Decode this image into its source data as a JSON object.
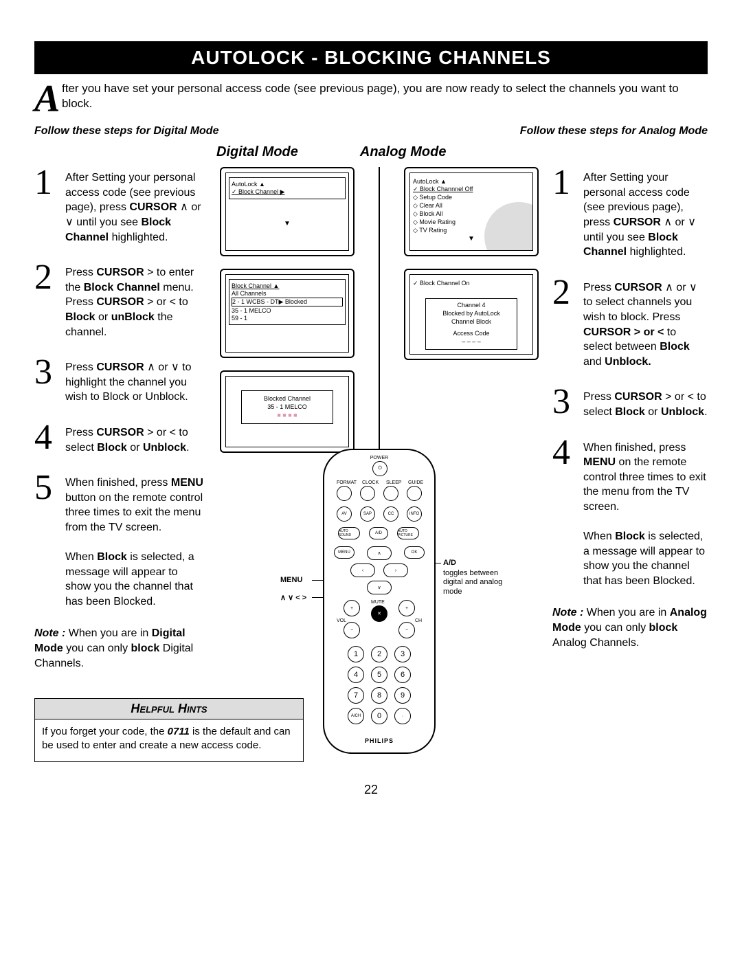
{
  "title": "AUTOLOCK - BLOCKING CHANNELS",
  "intro_cap": "A",
  "intro": "fter you have set your personal access code (see previous page), you are now ready to select the channels you want to block.",
  "sub_left": "Follow these steps for Digital Mode",
  "sub_right": "Follow these steps for Analog Mode",
  "mode_digital": "Digital Mode",
  "mode_analog": "Analog Mode",
  "digital_steps": [
    "After Setting your personal access code (see previous page), press <b>CURSOR</b> ∧ or ∨ until you see <b>Block Channel</b> highlighted.",
    "Press <b>CURSOR</b> &gt; to enter the <b>Block Channel</b> menu. Press <b>CURSOR</b> &gt; or &lt; to <b>Block</b> or <b>unBlock</b> the channel.",
    "Press <b>CURSOR</b> ∧ or ∨ to highlight the channel you wish to Block or Unblock.",
    "Press <b>CURSOR</b> &gt; or &lt; to select <b>Block</b> or <b>Unblock</b>.",
    "When finished, press <b>MENU</b> button on the remote control three times to exit the menu from the TV screen."
  ],
  "digital_block_msg": "When <b>Block</b> is selected, a message will appear to show you the channel that has been Blocked.",
  "digital_note": "<b><i>Note :</i></b> When you are in <b>Digital Mode</b> you can only <b>block</b> Digital Channels.",
  "analog_steps": [
    "After Setting your personal access code (see previous page), press <b>CURSOR</b> ∧ or ∨ until you see <b>Block Channel</b> highlighted.",
    "Press <b>CURSOR</b> ∧ or ∨ to select channels you wish to block. Press <b>CURSOR &gt; or &lt;</b> to select between <b>Block</b> and <b>Unblock.</b>",
    "Press <b>CURSOR</b> &gt; or &lt; to select <b>Block</b> or <b>Unblock</b>.",
    "When finished, press <b>MENU</b> on the remote control three times to exit the menu from the TV screen."
  ],
  "analog_block_msg": "When <b>Block</b> is selected, a message will appear to show you the channel that has been Blocked.",
  "analog_note": "<b><i>Note :</i></b> When you are in <b>Analog Mode</b> you can only <b>block</b> Analog Channels.",
  "hints_header": "Helpful Hints",
  "hints_body": "If you forget your code, the <b><i>0711</i></b> is the default and can be used to enter and create a new access code.",
  "page_num": "22",
  "tv1": {
    "l1": "AutoLock        ▲",
    "l2": "✓ Block Channel ▶"
  },
  "tv2": {
    "l1": "Block Channel ▲",
    "l2": "All Channels",
    "l3": "2  - 1 WCBS - DT▶  Blocked",
    "l4": "35 - 1 MELCO",
    "l5": "59 - 1"
  },
  "tv3": {
    "l1": "Blocked Channel",
    "l2": "35 - 1 MELCO",
    "l3": "■ ■ ■ ■"
  },
  "tv4": {
    "l1": "AutoLock          ▲",
    "l2": "✓ Block Channnel    Off",
    "l3": "◇ Setup Code",
    "l4": "◇ Clear All",
    "l5": "◇ Block All",
    "l6": "◇ Movie Rating",
    "l7": "◇ TV Rating"
  },
  "tv5": {
    "l1": "✓ Block Channel    On",
    "m1": "Channel 4",
    "m2": "Blocked by AutoLock",
    "m3": "Channel Block",
    "m4": "Access Code",
    "m5": "– – – –"
  },
  "remote": {
    "power": "POWER",
    "row1": [
      "FORMAT",
      "CLOCK",
      "SLEEP",
      "GUIDE"
    ],
    "row2": [
      "AV",
      "SAP",
      "CC",
      "INFO"
    ],
    "row3": [
      "AUTO SOUND",
      "A/D",
      "AUTO PICTURE"
    ],
    "menu": "MENU",
    "ok": "OK",
    "mute": "MUTE",
    "vol": "VOL",
    "ch": "CH",
    "ach": "A/CH",
    "brand": "PHILIPS",
    "label_menu": "MENU",
    "label_cursor": "∧ ∨ < >",
    "label_ad": "A/D",
    "label_ad_text": "toggles between digital and analog mode"
  }
}
